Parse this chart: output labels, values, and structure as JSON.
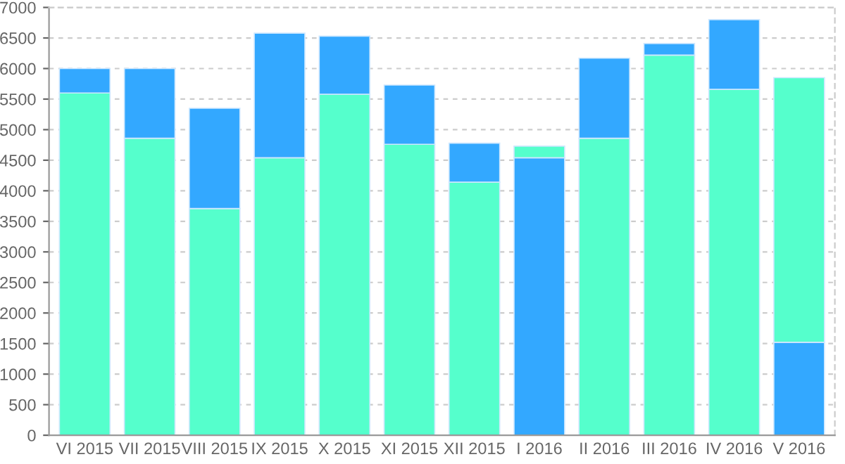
{
  "chart_data": {
    "type": "bar",
    "stacked": true,
    "categories": [
      "VI 2015",
      "VII 2015",
      "VIII 2015",
      "IX 2015",
      "X 2015",
      "XI 2015",
      "XII 2015",
      "I 2016",
      "II 2016",
      "III 2016",
      "IV 2016",
      "V 2016"
    ],
    "series": [
      {
        "colors": [
          "#55ffcc",
          "#55ffcc",
          "#55ffcc",
          "#55ffcc",
          "#55ffcc",
          "#55ffcc",
          "#55ffcc",
          "#33a8ff",
          "#55ffcc",
          "#55ffcc",
          "#55ffcc",
          "#33a8ff"
        ],
        "values": [
          5600,
          4860,
          3710,
          4540,
          5580,
          4760,
          4140,
          4540,
          4860,
          6220,
          5660,
          1520
        ]
      },
      {
        "colors": [
          "#33a8ff",
          "#33a8ff",
          "#33a8ff",
          "#33a8ff",
          "#33a8ff",
          "#33a8ff",
          "#33a8ff",
          "#55ffcc",
          "#33a8ff",
          "#33a8ff",
          "#33a8ff",
          "#55ffcc"
        ],
        "values": [
          400,
          1140,
          1640,
          2040,
          950,
          970,
          640,
          190,
          1310,
          190,
          1140,
          4330
        ]
      }
    ],
    "ylim": [
      0,
      7000
    ],
    "yticks": [
      0,
      500,
      1000,
      1500,
      2000,
      2500,
      3000,
      3500,
      4000,
      4500,
      5000,
      5500,
      6000,
      6500,
      7000
    ],
    "grid": "y",
    "legend": false
  }
}
